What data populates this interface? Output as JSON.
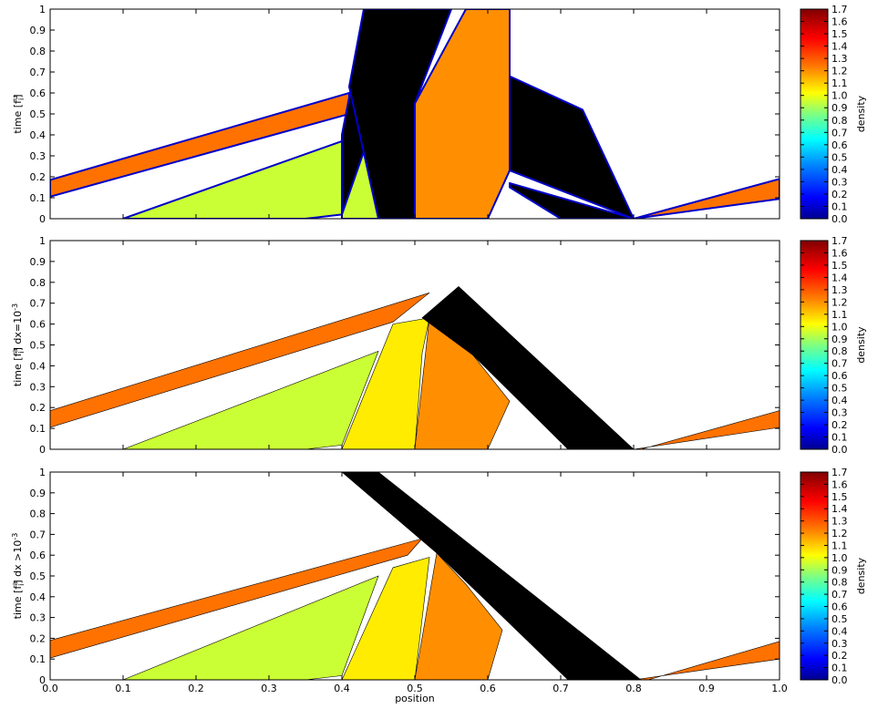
{
  "figure": {
    "xlabel": "position",
    "x_ticks": [
      "0.0",
      "0.1",
      "0.2",
      "0.3",
      "0.4",
      "0.5",
      "0.6",
      "0.7",
      "0.8",
      "0.9",
      "1.0"
    ],
    "y_ticks": [
      "0",
      "0.1",
      "0.2",
      "0.3",
      "0.4",
      "0.5",
      "0.6",
      "0.7",
      "0.8",
      "0.9",
      "1"
    ],
    "colorbar_ticks": [
      "0.0",
      "0.1",
      "0.2",
      "0.3",
      "0.4",
      "0.5",
      "0.6",
      "0.7",
      "0.8",
      "0.9",
      "1.0",
      "1.1",
      "1.2",
      "1.3",
      "1.4",
      "1.5",
      "1.6",
      "1.7"
    ],
    "colorbar_label": "density"
  },
  "chart_data": [
    {
      "type": "heatmap",
      "ylabel_base": "time [f",
      "ylabel_sup": "u",
      "ylabel_sub": "i",
      "ylabel_tail": "]",
      "xlim": [
        0,
        1
      ],
      "ylim": [
        0,
        1
      ],
      "colorbar": {
        "min": 0.0,
        "max": 1.7,
        "label": "density"
      },
      "regions": [
        {
          "density": 1.25,
          "polygon": [
            [
              0,
              0.105
            ],
            [
              0.41,
              0.5
            ],
            [
              0.41,
              0.6
            ],
            [
              0,
              0.185
            ]
          ],
          "edge": "blur"
        },
        {
          "density": 1.25,
          "polygon": [
            [
              0.8,
              0
            ],
            [
              1.0,
              0.095
            ],
            [
              1.0,
              0.19
            ],
            [
              0.8,
              0.0
            ]
          ],
          "edge": "blur"
        },
        {
          "density": 0.95,
          "polygon": [
            [
              0.1,
              0
            ],
            [
              0.35,
              0
            ],
            [
              0.4,
              0.02
            ],
            [
              0.4,
              0.37
            ]
          ],
          "edge": "blur"
        },
        {
          "density": 0.95,
          "polygon": [
            [
              0.4,
              0
            ],
            [
              0.5,
              0
            ],
            [
              0.5,
              0.51
            ],
            [
              0.4,
              0.37
            ]
          ],
          "edge": "blur"
        },
        {
          "density": 1.2,
          "polygon": [
            [
              0.5,
              0
            ],
            [
              0.6,
              0
            ],
            [
              0.63,
              0.23
            ],
            [
              0.63,
              1.0
            ],
            [
              0.57,
              1.0
            ],
            [
              0.5,
              0.55
            ]
          ],
          "edge": "blur"
        },
        {
          "density": 1.7,
          "polygon": [
            [
              0.4,
              0.02
            ],
            [
              0.45,
              0.52
            ],
            [
              0.45,
              0.91
            ],
            [
              0.41,
              0.58
            ],
            [
              0.4,
              0.4
            ]
          ],
          "edge": "blur"
        },
        {
          "density": 1.7,
          "polygon": [
            [
              0.45,
              0
            ],
            [
              0.5,
              0
            ],
            [
              0.5,
              0.55
            ],
            [
              0.55,
              1.0
            ],
            [
              0.43,
              1.0
            ],
            [
              0.41,
              0.63
            ]
          ],
          "edge": "blur"
        },
        {
          "density": 1.7,
          "polygon": [
            [
              0.63,
              0.17
            ],
            [
              0.8,
              0
            ],
            [
              0.7,
              0
            ],
            [
              0.63,
              0.15
            ]
          ],
          "edge": "blur"
        },
        {
          "density": 1.7,
          "polygon": [
            [
              0.63,
              0.68
            ],
            [
              0.73,
              0.52
            ],
            [
              0.8,
              0.0
            ],
            [
              0.63,
              0.23
            ]
          ],
          "edge": "blur"
        }
      ]
    },
    {
      "type": "heatmap",
      "ylabel_base": "time [f",
      "ylabel_sup": "a",
      "ylabel_sub": "i",
      "ylabel_tail": "] dx=10",
      "ylabel_exp": "-3",
      "xlim": [
        0,
        1
      ],
      "ylim": [
        0,
        1
      ],
      "colorbar": {
        "min": 0.0,
        "max": 1.7,
        "label": "density"
      },
      "regions": [
        {
          "density": 1.25,
          "polygon": [
            [
              0,
              0.105
            ],
            [
              0.47,
              0.61
            ],
            [
              0.52,
              0.75
            ],
            [
              0,
              0.185
            ]
          ]
        },
        {
          "density": 1.25,
          "polygon": [
            [
              0.8,
              0
            ],
            [
              1.0,
              0.105
            ],
            [
              1.0,
              0.185
            ],
            [
              0.81,
              0.0
            ]
          ]
        },
        {
          "density": 0.95,
          "polygon": [
            [
              0.1,
              0
            ],
            [
              0.35,
              0
            ],
            [
              0.4,
              0.02
            ],
            [
              0.45,
              0.47
            ]
          ]
        },
        {
          "density": 1.05,
          "polygon": [
            [
              0.4,
              0
            ],
            [
              0.5,
              0
            ],
            [
              0.51,
              0.46
            ],
            [
              0.52,
              0.63
            ],
            [
              0.47,
              0.6
            ]
          ]
        },
        {
          "density": 1.2,
          "polygon": [
            [
              0.5,
              0
            ],
            [
              0.6,
              0
            ],
            [
              0.63,
              0.23
            ],
            [
              0.58,
              0.45
            ],
            [
              0.52,
              0.63
            ]
          ]
        },
        {
          "density": 1.7,
          "polygon": [
            [
              0.51,
              0.63
            ],
            [
              0.56,
              0.78
            ],
            [
              0.8,
              0.0
            ],
            [
              0.71,
              0.0
            ],
            [
              0.58,
              0.45
            ]
          ]
        }
      ]
    },
    {
      "type": "heatmap",
      "ylabel_base": "time [f",
      "ylabel_sup": "a",
      "ylabel_sub": "i",
      "ylabel_tail": "] dx >10",
      "ylabel_exp": "-3",
      "xlim": [
        0,
        1
      ],
      "ylim": [
        0,
        1
      ],
      "colorbar": {
        "min": 0.0,
        "max": 1.7,
        "label": "density"
      },
      "regions": [
        {
          "density": 1.25,
          "polygon": [
            [
              0,
              0.105
            ],
            [
              0.49,
              0.6
            ],
            [
              0.51,
              0.68
            ],
            [
              0,
              0.19
            ]
          ]
        },
        {
          "density": 1.25,
          "polygon": [
            [
              0.8,
              0
            ],
            [
              1.0,
              0.1
            ],
            [
              1.0,
              0.185
            ],
            [
              0.82,
              0.0
            ]
          ]
        },
        {
          "density": 0.95,
          "polygon": [
            [
              0.1,
              0
            ],
            [
              0.35,
              0
            ],
            [
              0.4,
              0.02
            ],
            [
              0.45,
              0.5
            ]
          ]
        },
        {
          "density": 1.05,
          "polygon": [
            [
              0.4,
              0
            ],
            [
              0.5,
              0
            ],
            [
              0.52,
              0.59
            ],
            [
              0.47,
              0.54
            ]
          ]
        },
        {
          "density": 1.2,
          "polygon": [
            [
              0.5,
              0
            ],
            [
              0.6,
              0
            ],
            [
              0.62,
              0.24
            ],
            [
              0.57,
              0.46
            ],
            [
              0.53,
              0.61
            ]
          ]
        },
        {
          "density": 1.7,
          "polygon": [
            [
              0.4,
              1.0
            ],
            [
              0.45,
              1.0
            ],
            [
              0.81,
              0.0
            ],
            [
              0.71,
              0.0
            ],
            [
              0.53,
              0.61
            ]
          ]
        }
      ]
    }
  ]
}
